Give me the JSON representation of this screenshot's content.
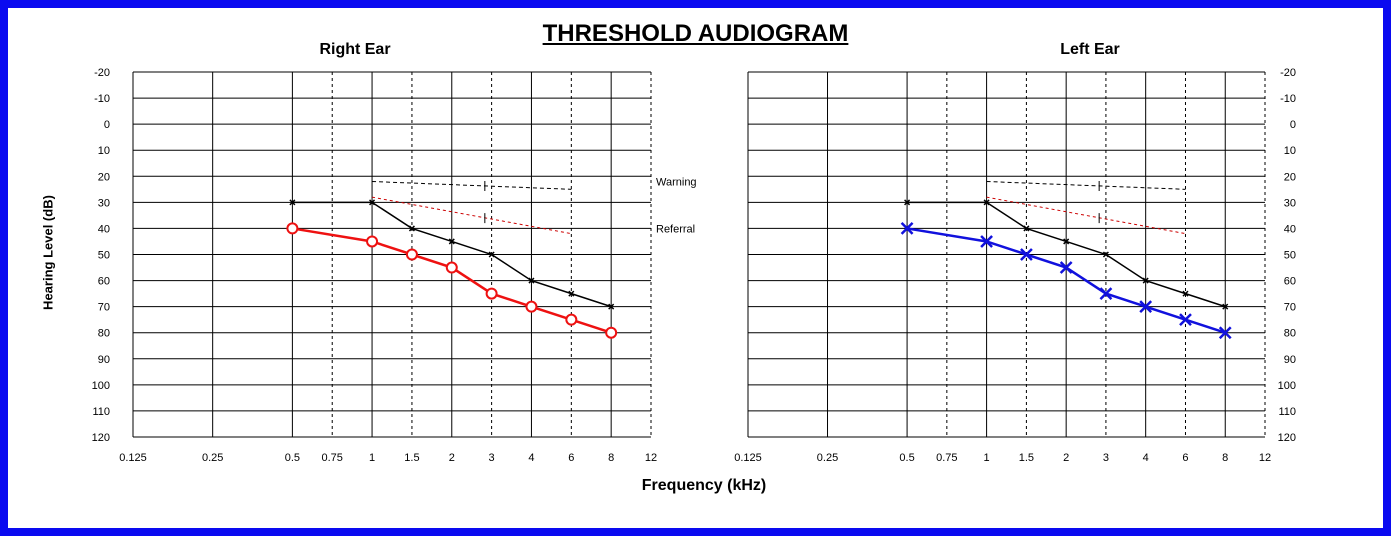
{
  "title": "THRESHOLD AUDIOGRAM",
  "xlabel": "Frequency (kHz)",
  "ylabel": "Hearing Level (dB)",
  "warning_label": "Warning",
  "referral_label": "Referral",
  "colors": {
    "frame": "#0a0af0",
    "right": "#ee1111",
    "left": "#1111dd",
    "reference": "#000000",
    "referral_line": "#cc0000"
  },
  "chart_data": [
    {
      "type": "line",
      "title": "Right Ear",
      "title_color": "#ee1111",
      "x_scale": "log",
      "x_ticks": [
        "0.125",
        "0.25",
        "0.5",
        "0.75",
        "1",
        "1.5",
        "2",
        "3",
        "4",
        "6",
        "8",
        "12"
      ],
      "y_ticks": [
        -20,
        -10,
        0,
        10,
        20,
        30,
        40,
        50,
        60,
        70,
        80,
        90,
        100,
        110,
        120
      ],
      "ylim": [
        -20,
        120
      ],
      "y_inverted": true,
      "grid": true,
      "series": [
        {
          "x": [
            0.5,
            1,
            1.5,
            2,
            3,
            4,
            6,
            8
          ],
          "y": [
            30,
            30,
            40,
            45,
            50,
            60,
            65,
            70
          ],
          "color": "#000000",
          "marker": "small-x"
        },
        {
          "x": [
            0.5,
            1,
            1.5,
            2,
            3,
            4,
            6,
            8
          ],
          "y": [
            40,
            45,
            50,
            55,
            65,
            70,
            75,
            80
          ],
          "color": "#ee1111",
          "marker": "circle"
        }
      ],
      "warning_line": {
        "x": [
          1,
          6
        ],
        "y": [
          22,
          25
        ]
      },
      "referral_line": {
        "x": [
          1,
          6
        ],
        "y": [
          28,
          42
        ]
      }
    },
    {
      "type": "line",
      "title": "Left Ear",
      "title_color": "#1111dd",
      "x_scale": "log",
      "x_ticks": [
        "0.125",
        "0.25",
        "0.5",
        "0.75",
        "1",
        "1.5",
        "2",
        "3",
        "4",
        "6",
        "8",
        "12"
      ],
      "y_ticks": [
        -20,
        -10,
        0,
        10,
        20,
        30,
        40,
        50,
        60,
        70,
        80,
        90,
        100,
        110,
        120
      ],
      "ylim": [
        -20,
        120
      ],
      "y_inverted": true,
      "grid": true,
      "series": [
        {
          "x": [
            0.5,
            1,
            1.5,
            2,
            3,
            4,
            6,
            8
          ],
          "y": [
            30,
            30,
            40,
            45,
            50,
            60,
            65,
            70
          ],
          "color": "#000000",
          "marker": "small-x"
        },
        {
          "x": [
            0.5,
            1,
            1.5,
            2,
            3,
            4,
            6,
            8
          ],
          "y": [
            40,
            45,
            50,
            55,
            65,
            70,
            75,
            80
          ],
          "color": "#1111dd",
          "marker": "x"
        }
      ],
      "warning_line": {
        "x": [
          1,
          6
        ],
        "y": [
          22,
          25
        ]
      },
      "referral_line": {
        "x": [
          1,
          6
        ],
        "y": [
          28,
          42
        ]
      }
    }
  ]
}
